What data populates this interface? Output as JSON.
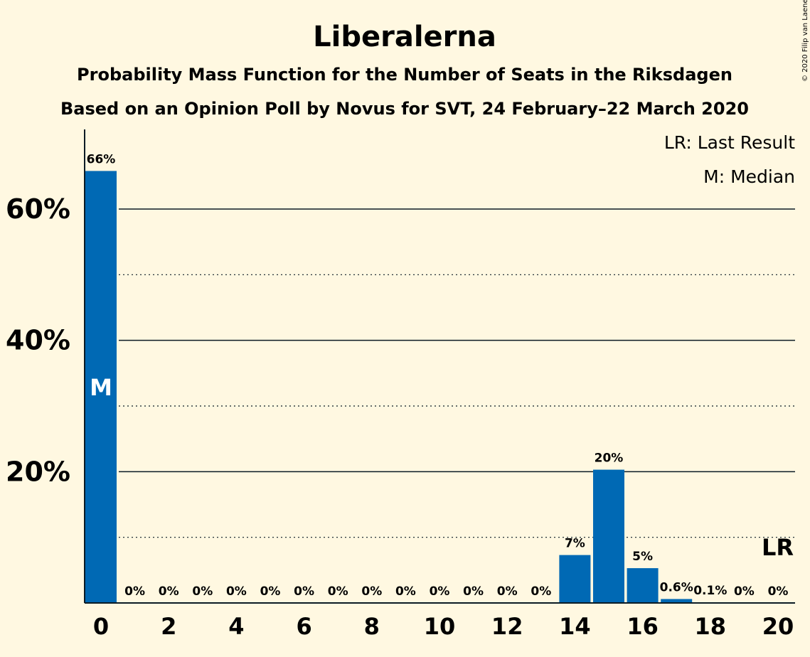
{
  "chart_data": {
    "type": "bar",
    "title": "Liberalerna",
    "subtitle_1": "Probability Mass Function for the Number of Seats in the Riksdagen",
    "subtitle_2": "Based on an Opinion Poll by Novus for SVT, 24 February–22 March 2020",
    "copyright": "© 2020 Filip van Laenen",
    "legend": [
      "LR: Last Result",
      "M: Median"
    ],
    "x": [
      0,
      1,
      2,
      3,
      4,
      5,
      6,
      7,
      8,
      9,
      10,
      11,
      12,
      13,
      14,
      15,
      16,
      17,
      18,
      19,
      20
    ],
    "values": [
      65.8,
      0,
      0,
      0,
      0,
      0,
      0,
      0,
      0,
      0,
      0,
      0,
      0,
      0,
      7.3,
      20.3,
      5.3,
      0.6,
      0.1,
      0,
      0
    ],
    "data_labels": [
      "66%",
      "0%",
      "0%",
      "0%",
      "0%",
      "0%",
      "0%",
      "0%",
      "0%",
      "0%",
      "0%",
      "0%",
      "0%",
      "0%",
      "7%",
      "20%",
      "5%",
      "0.6%",
      "0.1%",
      "0%",
      "0%"
    ],
    "x_tick_labels": [
      "0",
      "2",
      "4",
      "6",
      "8",
      "10",
      "12",
      "14",
      "16",
      "18",
      "20"
    ],
    "y_ticks": [
      20,
      40,
      60
    ],
    "y_tick_labels": [
      "20%",
      "40%",
      "60%"
    ],
    "y_minor_gridlines": [
      10,
      30,
      50
    ],
    "ylim": [
      0,
      72
    ],
    "median_seat": 0,
    "median_marker": "M",
    "last_result_seat": 20,
    "last_result_marker": "LR",
    "bar_color": "#0069b4",
    "background": "#fff8e1",
    "grid": true,
    "legend_position": "top-right"
  }
}
